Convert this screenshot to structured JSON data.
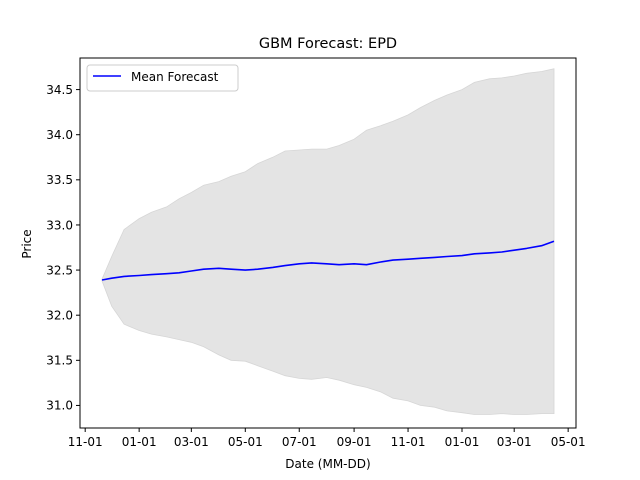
{
  "chart_data": {
    "type": "line",
    "title": "GBM Forecast: EPD",
    "xlabel": "Date (MM-DD)",
    "ylabel": "Price",
    "x_ticks": [
      "11-01",
      "01-01",
      "03-01",
      "05-01",
      "07-01",
      "09-01",
      "11-01",
      "01-01",
      "03-01",
      "05-01"
    ],
    "y_ticks": [
      "31.0",
      "31.5",
      "32.0",
      "32.5",
      "33.0",
      "33.5",
      "34.0",
      "34.5"
    ],
    "ylim": [
      30.75,
      34.85
    ],
    "grid": false,
    "legend_position": "upper left",
    "x": [
      "11-20",
      "12-01",
      "12-15",
      "01-01",
      "01-15",
      "02-01",
      "02-15",
      "03-01",
      "03-15",
      "04-01",
      "04-15",
      "05-01",
      "05-15",
      "06-01",
      "06-15",
      "07-01",
      "07-15",
      "08-01",
      "08-15",
      "09-01",
      "09-15",
      "10-01",
      "10-15",
      "11-01",
      "11-15",
      "12-01",
      "12-15",
      "01-01",
      "01-15",
      "02-01",
      "02-15",
      "03-01",
      "03-15",
      "04-01",
      "04-15"
    ],
    "series": [
      {
        "name": "Mean Forecast",
        "color": "#0000ff",
        "values": [
          32.39,
          32.41,
          32.43,
          32.44,
          32.45,
          32.46,
          32.47,
          32.49,
          32.51,
          32.52,
          32.51,
          32.5,
          32.51,
          32.53,
          32.55,
          32.57,
          32.58,
          32.57,
          32.56,
          32.57,
          32.56,
          32.59,
          32.61,
          32.62,
          32.63,
          32.64,
          32.65,
          32.66,
          32.68,
          32.69,
          32.7,
          32.72,
          32.74,
          32.77,
          32.82
        ]
      }
    ],
    "band": {
      "color": "#e4e4e4",
      "upper": [
        32.4,
        32.65,
        32.95,
        33.07,
        33.14,
        33.2,
        33.29,
        33.36,
        33.44,
        33.48,
        33.54,
        33.59,
        33.68,
        33.75,
        33.82,
        33.83,
        33.84,
        33.84,
        33.88,
        33.95,
        34.05,
        34.1,
        34.15,
        34.22,
        34.3,
        34.38,
        34.44,
        34.5,
        34.58,
        34.62,
        34.63,
        34.65,
        34.68,
        34.7,
        34.73
      ],
      "lower": [
        32.38,
        32.1,
        31.9,
        31.83,
        31.79,
        31.76,
        31.73,
        31.7,
        31.65,
        31.56,
        31.5,
        31.49,
        31.44,
        31.38,
        31.33,
        31.3,
        31.29,
        31.31,
        31.28,
        31.23,
        31.2,
        31.15,
        31.08,
        31.05,
        31.0,
        30.98,
        30.94,
        30.92,
        30.9,
        30.9,
        30.91,
        30.9,
        30.9,
        30.91,
        30.91
      ]
    }
  }
}
